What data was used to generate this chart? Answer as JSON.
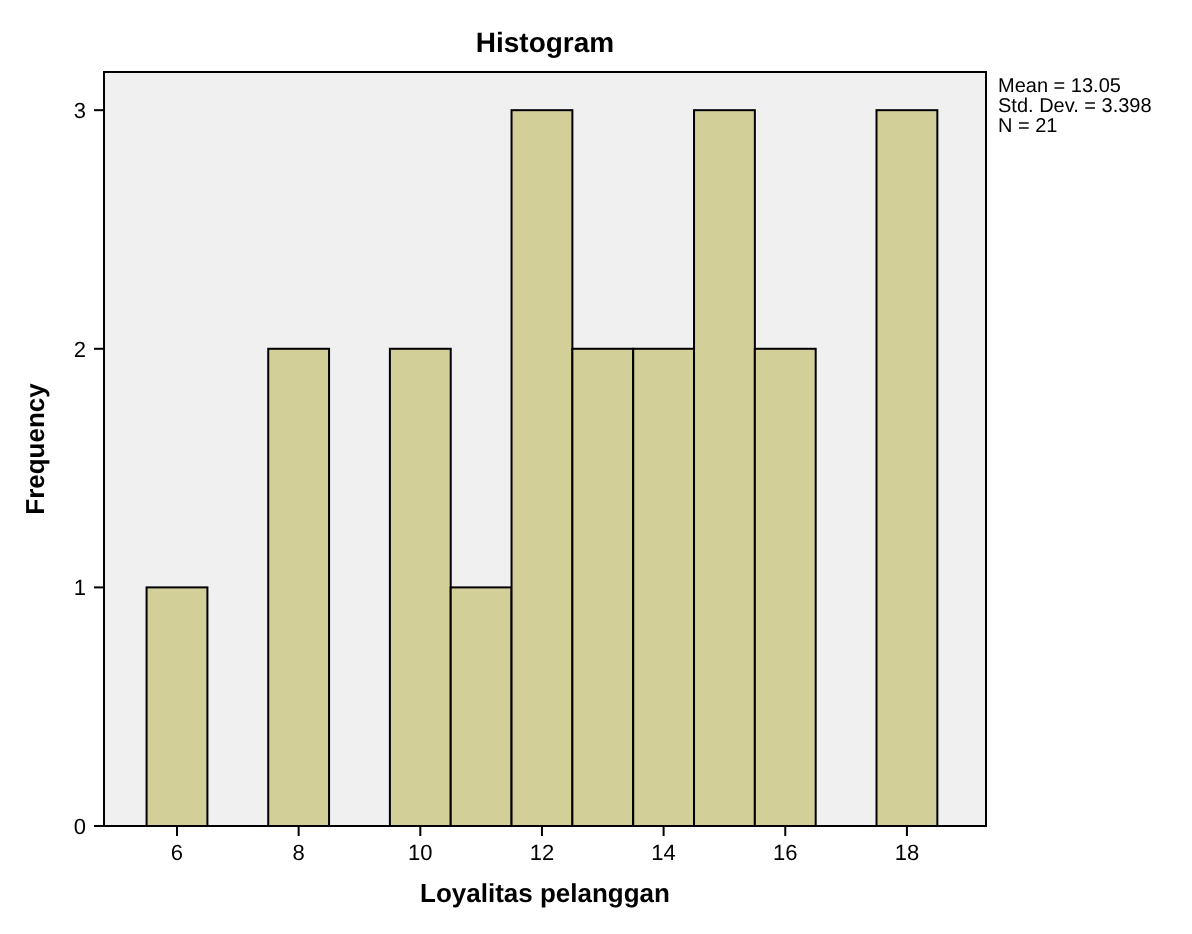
{
  "chart_data": {
    "type": "histogram",
    "title": "Histogram",
    "xlabel": "Loyalitas pelanggan",
    "ylabel": "Frequency",
    "bins": [
      5.5,
      6.5,
      7.5,
      8.5,
      9.5,
      10.5,
      11.5,
      12.5,
      13.5,
      14.5,
      15.5,
      16.5,
      17.5,
      18.5
    ],
    "values": [
      1,
      0,
      2,
      0,
      2,
      1,
      3,
      2,
      2,
      3,
      2,
      0,
      3
    ],
    "color": "#d3cf98",
    "xlim": [
      4.8,
      19.3
    ],
    "xticks": [
      6,
      8,
      10,
      12,
      14,
      16,
      18
    ],
    "ylim": [
      0,
      3.16
    ],
    "yticks": [
      0,
      1,
      2,
      3
    ],
    "grid": false,
    "annotations": [
      "Mean = 13.05",
      "Std. Dev. = 3.398",
      "N = 21"
    ]
  }
}
